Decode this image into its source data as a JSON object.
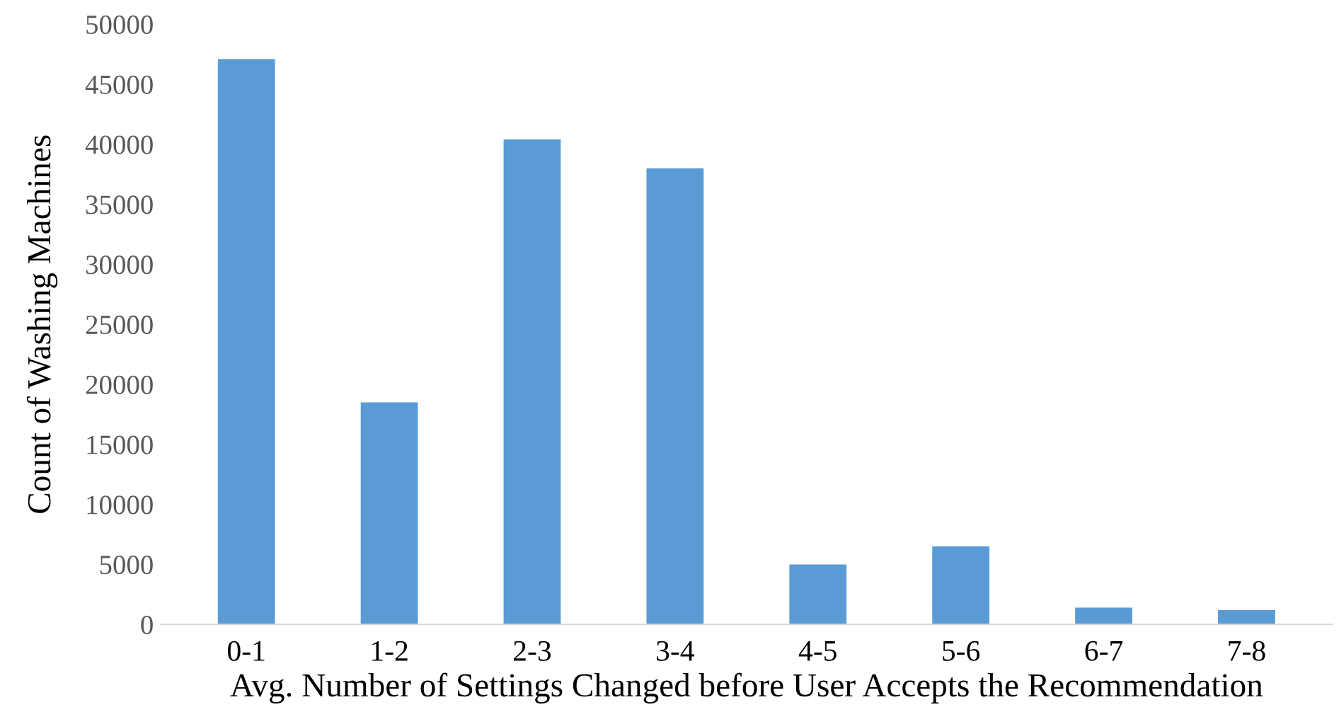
{
  "chart_data": {
    "type": "bar",
    "xlabel": "Avg. Number of Settings Changed before User Accepts the Recommendation",
    "ylabel": "Count of Washing Machines",
    "categories": [
      "0-1",
      "1-2",
      "2-3",
      "3-4",
      "4-5",
      "5-6",
      "6-7",
      "7-8"
    ],
    "values": [
      47100,
      18500,
      40400,
      38000,
      5000,
      6500,
      1400,
      1200
    ],
    "color": "#5b9bd5",
    "ylim": [
      0,
      50000
    ],
    "yticks": [
      0,
      5000,
      10000,
      15000,
      20000,
      25000,
      30000,
      35000,
      40000,
      45000,
      50000
    ],
    "grid": false,
    "legend": false
  }
}
